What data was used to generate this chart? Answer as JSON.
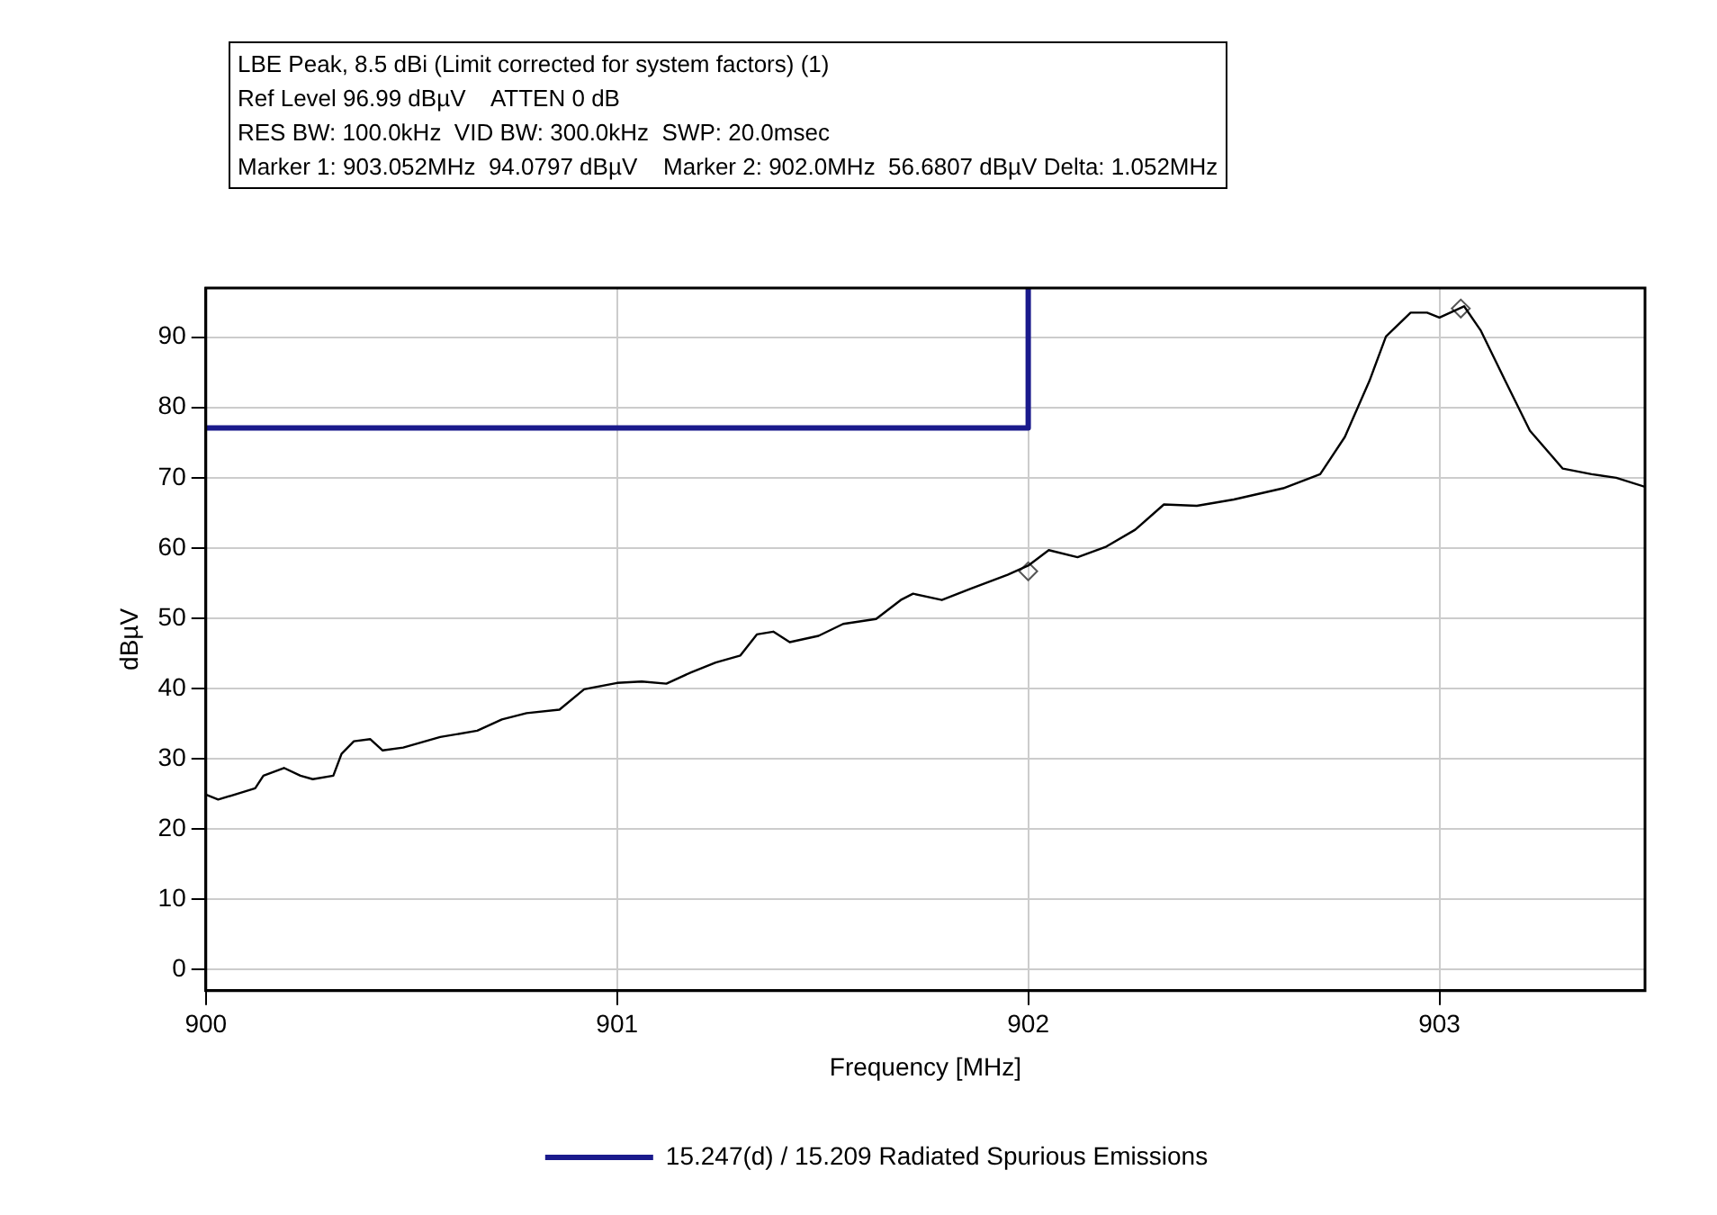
{
  "chart_data": {
    "type": "line",
    "title": "LBE Peak, 8.5 dBi (Limit corrected for system factors) (1)",
    "annotations": [
      "Ref Level 96.99 dBµV    ATTEN 0 dB",
      "RES BW: 100.0kHz  VID BW: 300.0kHz  SWP: 20.0msec",
      "Marker 1: 903.052MHz  94.0797 dBµV    Marker 2: 902.0MHz  56.6807 dBµV Delta: 1.052MHz"
    ],
    "xlabel": "Frequency [MHz]",
    "ylabel": "dBµV",
    "xlim": [
      900,
      903.5
    ],
    "xticks": [
      900,
      901,
      902,
      903
    ],
    "ylim": [
      -3,
      97
    ],
    "yticks": [
      0,
      10,
      20,
      30,
      40,
      50,
      60,
      70,
      80,
      90
    ],
    "grid": true,
    "legend": "bottom",
    "series": [
      {
        "type": "line",
        "color": "#000000",
        "marker": "none",
        "line_style": "solid",
        "x": [
          900.0,
          900.03,
          900.12,
          900.14,
          900.19,
          900.23,
          900.26,
          900.31,
          900.33,
          900.36,
          900.4,
          900.43,
          900.48,
          900.57,
          900.66,
          900.72,
          900.78,
          900.86,
          900.92,
          901.0,
          901.06,
          901.12,
          901.18,
          901.24,
          901.3,
          901.34,
          901.38,
          901.42,
          901.49,
          901.55,
          901.63,
          901.69,
          901.72,
          901.79,
          901.86,
          901.95,
          902.0,
          902.05,
          902.12,
          902.19,
          902.26,
          902.33,
          902.41,
          902.5,
          902.62,
          902.71,
          902.77,
          902.83,
          902.87,
          902.93,
          902.97,
          903.0,
          903.06,
          903.1,
          903.16,
          903.22,
          903.3,
          903.37,
          903.43,
          903.5
        ],
        "values": [
          24.9,
          24.2,
          25.8,
          27.6,
          28.7,
          27.6,
          27.1,
          27.6,
          30.7,
          32.5,
          32.8,
          31.2,
          31.6,
          33.1,
          34.0,
          35.6,
          36.5,
          37.0,
          39.9,
          40.8,
          41.0,
          40.7,
          42.3,
          43.7,
          44.7,
          47.7,
          48.1,
          46.6,
          47.5,
          49.2,
          49.9,
          52.6,
          53.5,
          52.6,
          54.2,
          56.2,
          57.5,
          59.7,
          58.7,
          60.2,
          62.6,
          66.2,
          66.0,
          66.9,
          68.5,
          70.5,
          75.8,
          83.8,
          90.1,
          93.5,
          93.5,
          92.8,
          94.4,
          91.0,
          83.8,
          76.7,
          71.3,
          70.5,
          70.0,
          68.7
        ]
      },
      {
        "type": "line",
        "name": "15.247(d) / 15.209 Radiated Spurious Emissions",
        "color": "#1a1a8c",
        "marker": "none",
        "line_style": "solid",
        "x": [
          900,
          902,
          902
        ],
        "values": [
          77.1,
          77.1,
          97
        ]
      },
      {
        "type": "scatter",
        "color": "#555555",
        "marker": "diamond",
        "x": [
          903.052,
          902.0
        ],
        "values": [
          94.0797,
          56.6807
        ]
      }
    ]
  }
}
